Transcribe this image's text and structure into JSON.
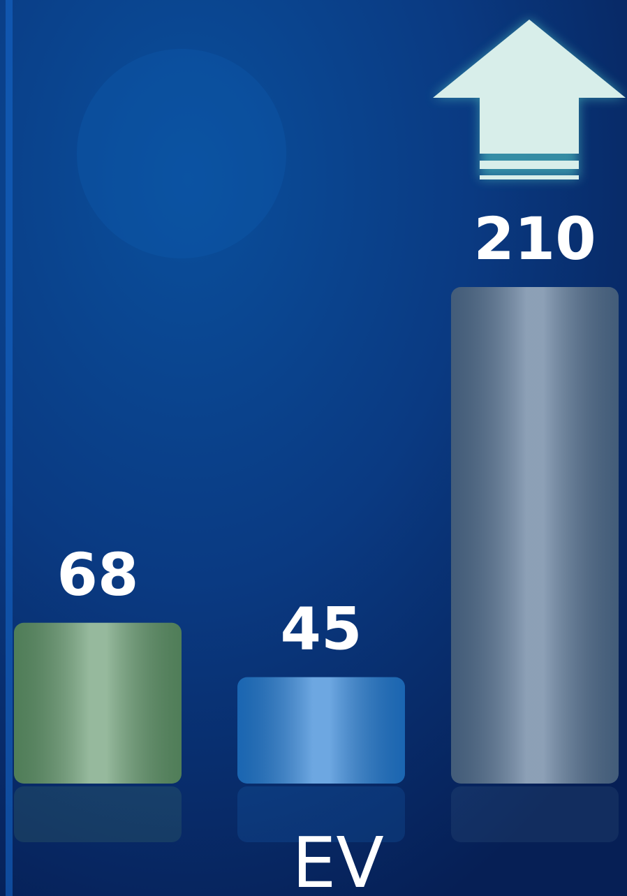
{
  "chart_data": {
    "type": "bar",
    "categories": [
      null,
      null,
      null
    ],
    "values": [
      68,
      45,
      210
    ],
    "colors": [
      "#5e9468",
      "#1f78d1",
      "#4f6d8f"
    ],
    "xlabel": "EV"
  }
}
